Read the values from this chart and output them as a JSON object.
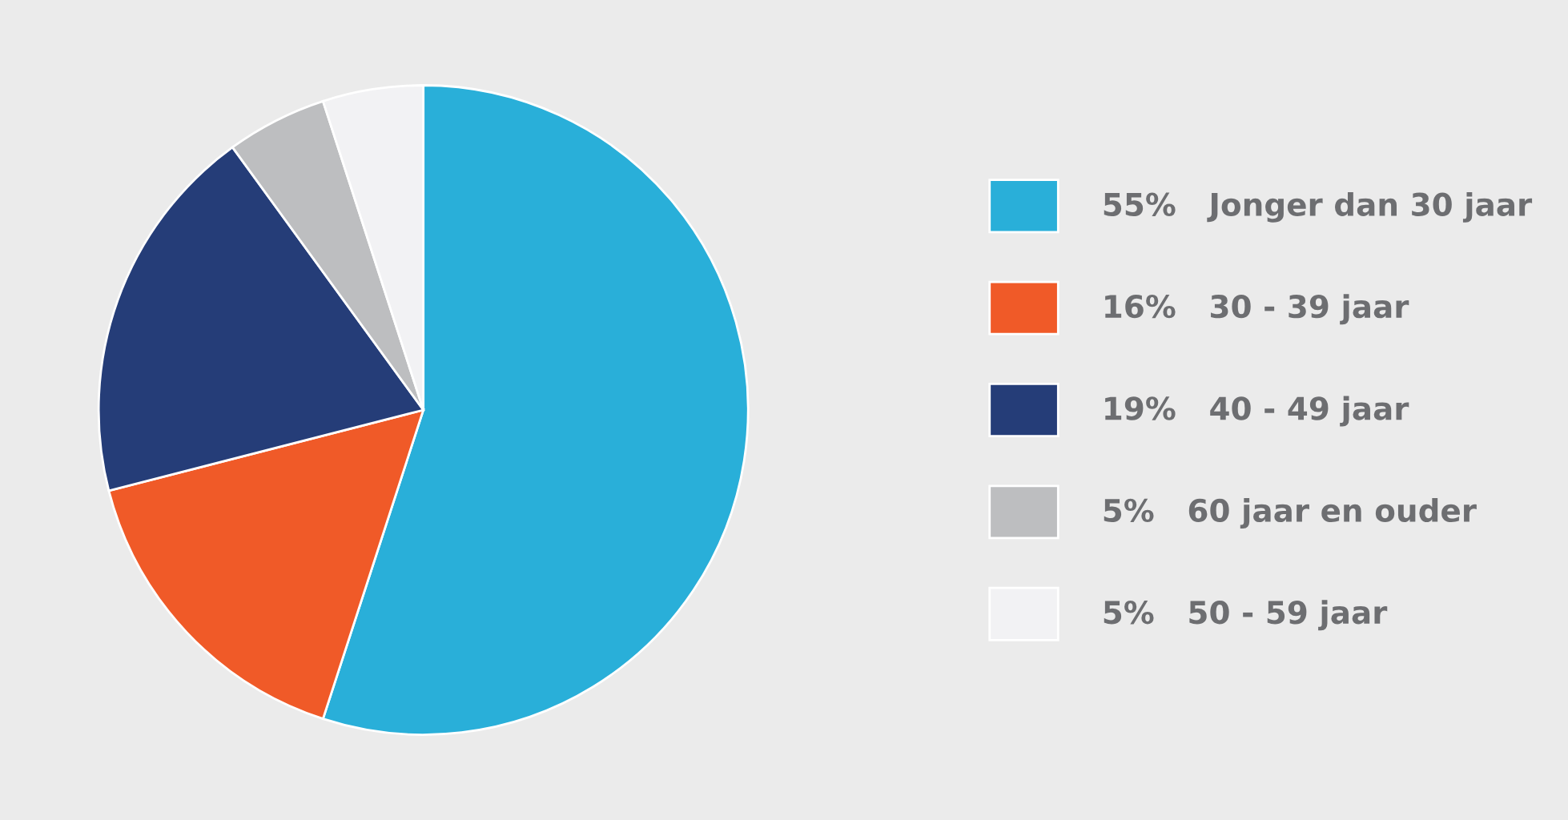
{
  "chart_data": {
    "type": "pie",
    "categories": [
      "Jonger dan 30 jaar",
      "30 - 39 jaar",
      "40 - 49 jaar",
      "60 jaar en ouder",
      "50 - 59 jaar"
    ],
    "values": [
      55,
      16,
      19,
      5,
      5
    ],
    "value_labels": [
      "55%",
      "16%",
      "19%",
      "5%",
      "5%"
    ],
    "colors": [
      "#29afd9",
      "#f05a28",
      "#253d78",
      "#bdbec0",
      "#f2f2f4"
    ],
    "legend": "right"
  }
}
